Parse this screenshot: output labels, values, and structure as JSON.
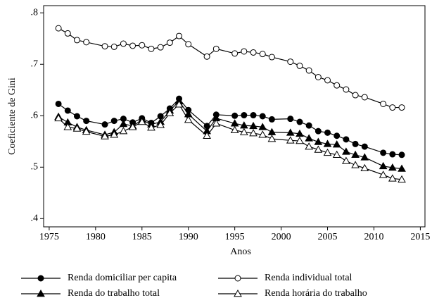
{
  "chart_data": {
    "type": "line",
    "x_label": "Anos",
    "y_label": "Coeficiente de Gini",
    "x": [
      1976,
      1977,
      1978,
      1979,
      1981,
      1982,
      1983,
      1984,
      1985,
      1986,
      1987,
      1988,
      1989,
      1990,
      1992,
      1993,
      1995,
      1996,
      1997,
      1998,
      1999,
      2001,
      2002,
      2003,
      2004,
      2005,
      2006,
      2007,
      2008,
      2009,
      2011,
      2012,
      2013
    ],
    "xlim": [
      1974.4,
      2015.5
    ],
    "xticks": [
      1975,
      1980,
      1985,
      1990,
      1995,
      2000,
      2005,
      2010,
      2015
    ],
    "ylim": [
      0.384,
      0.814
    ],
    "yticks": [
      {
        "value": 0.4,
        "label": ".4"
      },
      {
        "value": 0.5,
        "label": ".5"
      },
      {
        "value": 0.6,
        "label": ".6"
      },
      {
        "value": 0.7,
        "label": ".7"
      },
      {
        "value": 0.8,
        "label": ".8"
      }
    ],
    "series": [
      {
        "name": "Renda domiciliar per capita",
        "color": "#000000",
        "marker": "circle",
        "filled": true,
        "values": [
          0.623,
          0.61,
          0.599,
          0.59,
          0.583,
          0.59,
          0.594,
          0.587,
          0.595,
          0.586,
          0.599,
          0.614,
          0.633,
          0.611,
          0.58,
          0.602,
          0.6,
          0.601,
          0.601,
          0.599,
          0.593,
          0.594,
          0.588,
          0.581,
          0.57,
          0.567,
          0.561,
          0.554,
          0.545,
          0.54,
          0.528,
          0.525,
          0.524
        ]
      },
      {
        "name": "Renda individual total",
        "color": "#000000",
        "marker": "circle",
        "filled": false,
        "values": [
          0.77,
          0.76,
          0.747,
          0.743,
          0.735,
          0.734,
          0.74,
          0.736,
          0.737,
          0.73,
          0.733,
          0.742,
          0.755,
          0.739,
          0.715,
          0.73,
          0.721,
          0.725,
          0.723,
          0.72,
          0.714,
          0.705,
          0.697,
          0.688,
          0.675,
          0.669,
          0.659,
          0.651,
          0.64,
          0.636,
          0.623,
          0.616,
          0.616
        ]
      },
      {
        "name": "Renda do trabalho total",
        "color": "#000000",
        "marker": "triangle",
        "filled": true,
        "values": [
          0.598,
          0.587,
          0.578,
          0.572,
          0.563,
          0.568,
          0.584,
          0.58,
          0.592,
          0.583,
          0.588,
          0.61,
          0.628,
          0.603,
          0.57,
          0.595,
          0.585,
          0.581,
          0.58,
          0.578,
          0.568,
          0.567,
          0.565,
          0.556,
          0.549,
          0.545,
          0.544,
          0.53,
          0.524,
          0.519,
          0.502,
          0.499,
          0.497
        ]
      },
      {
        "name": "Renda horária do trabalho",
        "color": "#000000",
        "marker": "triangle",
        "filled": false,
        "values": [
          0.595,
          0.578,
          0.575,
          0.569,
          0.56,
          0.563,
          0.57,
          0.578,
          0.588,
          0.577,
          0.582,
          0.605,
          0.622,
          0.592,
          0.561,
          0.585,
          0.572,
          0.568,
          0.566,
          0.563,
          0.555,
          0.552,
          0.551,
          0.54,
          0.534,
          0.528,
          0.524,
          0.512,
          0.504,
          0.498,
          0.485,
          0.478,
          0.476
        ]
      }
    ]
  }
}
